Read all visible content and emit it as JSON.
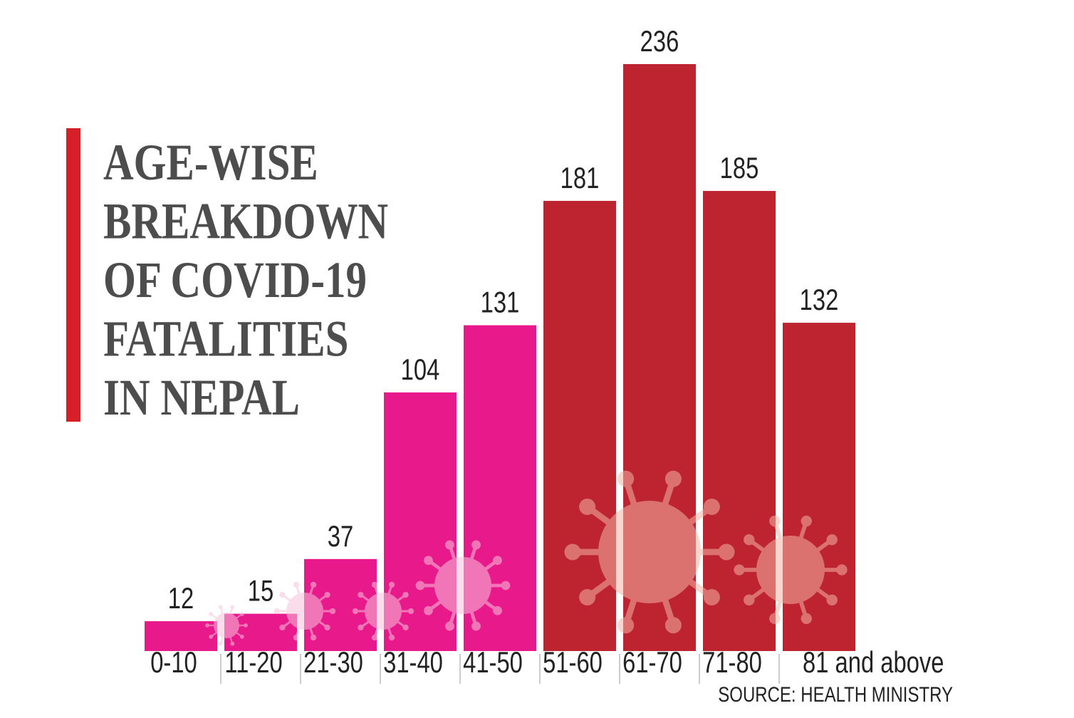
{
  "chart_data": {
    "type": "bar",
    "title": [
      "AGE-WISE",
      "BREAKDOWN",
      "OF COVID-19",
      "FATALITIES",
      "IN NEPAL"
    ],
    "categories": [
      "0-10",
      "11-20",
      "21-30",
      "31-40",
      "41-50",
      "51-60",
      "61-70",
      "71-80",
      "81 and above"
    ],
    "values": [
      12,
      15,
      37,
      104,
      131,
      181,
      236,
      185,
      132
    ],
    "colors": [
      "#e8198b",
      "#e8198b",
      "#e8198b",
      "#e8198b",
      "#e8198b",
      "#be2430",
      "#be2430",
      "#be2430",
      "#be2430"
    ],
    "source": "SOURCE: HEALTH MINISTRY"
  }
}
